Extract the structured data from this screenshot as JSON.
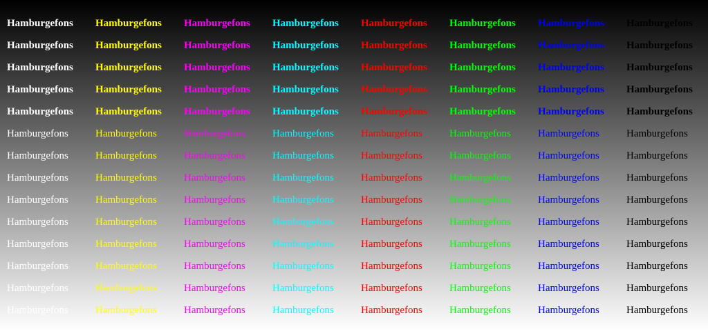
{
  "sample_text": "Hamburgefons",
  "colors": [
    "#ffffff",
    "#ffff00",
    "#ff00ff",
    "#00ffff",
    "#ff0000",
    "#00ff00",
    "#0000ff",
    "#000000"
  ],
  "color_names": [
    "white",
    "yellow",
    "magenta",
    "cyan",
    "red",
    "green",
    "blue",
    "black"
  ],
  "row_count": 14,
  "background": {
    "type": "vertical-gradient",
    "from": "#000000",
    "to": "#ffffff"
  }
}
